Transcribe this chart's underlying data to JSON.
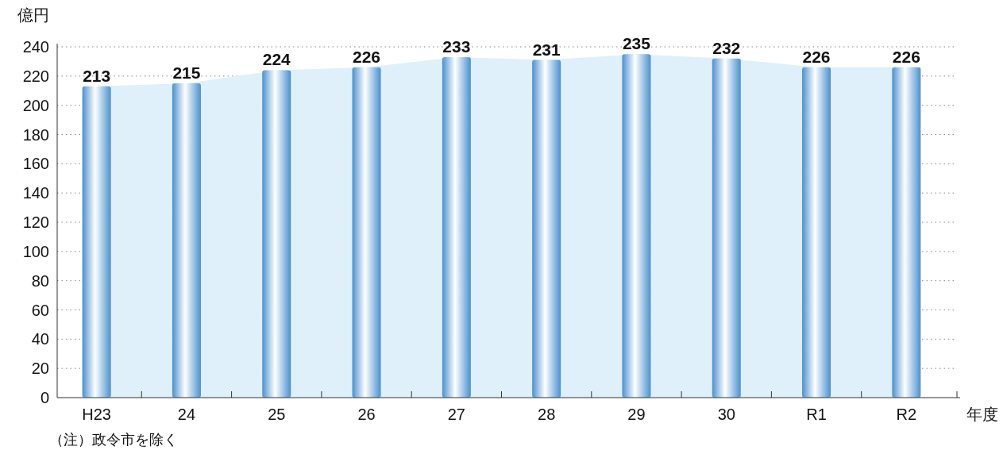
{
  "chart_data": {
    "type": "bar",
    "ylabel": "億円",
    "xlabel": "年度",
    "categories": [
      "H23",
      "24",
      "25",
      "26",
      "27",
      "28",
      "29",
      "30",
      "R1",
      "R2"
    ],
    "series": [
      {
        "type": "area",
        "color": "#dff0fa",
        "values": [
          213,
          215,
          224,
          226,
          233,
          231,
          235,
          232,
          226,
          226
        ]
      },
      {
        "color": "#4a90d0",
        "values": [
          213,
          215,
          224,
          226,
          233,
          231,
          235,
          232,
          226,
          226
        ],
        "value_labels": [
          "213",
          "215",
          "224",
          "226",
          "233",
          "231",
          "235",
          "232",
          "226",
          "226"
        ]
      }
    ],
    "ylim": [
      0,
      240
    ],
    "yticks": [
      0,
      20,
      40,
      60,
      80,
      100,
      120,
      140,
      160,
      180,
      200,
      220,
      240
    ],
    "grid": "y",
    "annotations": [
      "（注）政令市を除く"
    ]
  }
}
